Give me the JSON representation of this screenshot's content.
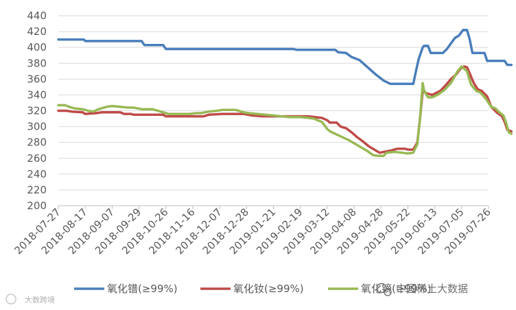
{
  "chart_data": {
    "type": "line",
    "title": "",
    "xlabel": "",
    "ylabel": "",
    "ylim": [
      200,
      440
    ],
    "yticks": [
      200,
      220,
      240,
      260,
      280,
      300,
      320,
      340,
      360,
      380,
      400,
      420,
      440
    ],
    "x_tick_labels": [
      "2018-07-27",
      "2018-08-17",
      "2018-09-07",
      "2018-09-29",
      "2018-10-26",
      "2018-11-16",
      "2018-12-07",
      "2018-12-28",
      "2019-01-21",
      "2019-02-19",
      "2019-03-12",
      "2019-04-08",
      "2019-04-28",
      "2019-05-22",
      "2019-06-13",
      "2019-07-05",
      "2019-07-26"
    ],
    "grid": "horizontal",
    "legend_position": "bottom",
    "series": [
      {
        "name": "氧化镨(≥99%)",
        "color": "#4a7ebb",
        "points": [
          [
            0,
            410
          ],
          [
            0.95,
            410
          ],
          [
            1.0,
            408
          ],
          [
            3.1,
            408
          ],
          [
            3.2,
            403
          ],
          [
            3.9,
            403
          ],
          [
            4.0,
            398
          ],
          [
            8.75,
            398
          ],
          [
            8.85,
            397
          ],
          [
            10.3,
            397
          ],
          [
            10.4,
            394
          ],
          [
            10.7,
            393
          ],
          [
            10.9,
            388
          ],
          [
            11.2,
            384
          ],
          [
            11.5,
            375
          ],
          [
            11.8,
            366
          ],
          [
            12.1,
            358
          ],
          [
            12.35,
            354
          ],
          [
            13.2,
            354
          ],
          [
            13.3,
            370
          ],
          [
            13.4,
            385
          ],
          [
            13.55,
            400
          ],
          [
            13.6,
            402
          ],
          [
            13.75,
            402
          ],
          [
            13.85,
            393
          ],
          [
            14.3,
            393
          ],
          [
            14.45,
            398
          ],
          [
            14.6,
            405
          ],
          [
            14.75,
            412
          ],
          [
            14.9,
            415
          ],
          [
            15.05,
            422
          ],
          [
            15.2,
            422
          ],
          [
            15.3,
            410
          ],
          [
            15.4,
            393
          ],
          [
            15.85,
            393
          ],
          [
            15.95,
            383
          ],
          [
            16.6,
            383
          ],
          [
            16.7,
            378
          ],
          [
            16.85,
            378
          ]
        ]
      },
      {
        "name": "氧化钕(≥99%)",
        "color": "#be4b48",
        "points": [
          [
            0,
            320
          ],
          [
            0.3,
            320
          ],
          [
            0.5,
            319
          ],
          [
            0.9,
            318
          ],
          [
            1.0,
            316
          ],
          [
            1.4,
            317
          ],
          [
            1.6,
            318
          ],
          [
            2.3,
            318
          ],
          [
            2.45,
            316
          ],
          [
            2.7,
            316
          ],
          [
            2.8,
            315
          ],
          [
            3.9,
            315
          ],
          [
            4.0,
            313
          ],
          [
            5.4,
            313
          ],
          [
            5.6,
            315
          ],
          [
            6.1,
            316
          ],
          [
            6.9,
            316
          ],
          [
            7.2,
            314
          ],
          [
            7.6,
            313
          ],
          [
            8.6,
            313
          ],
          [
            9.3,
            313
          ],
          [
            9.8,
            311
          ],
          [
            10.0,
            308
          ],
          [
            10.1,
            305
          ],
          [
            10.35,
            305
          ],
          [
            10.5,
            300
          ],
          [
            10.7,
            298
          ],
          [
            10.9,
            293
          ],
          [
            11.1,
            287
          ],
          [
            11.3,
            282
          ],
          [
            11.55,
            275
          ],
          [
            11.8,
            270
          ],
          [
            11.95,
            267
          ],
          [
            12.1,
            268
          ],
          [
            12.4,
            270
          ],
          [
            12.6,
            272
          ],
          [
            12.9,
            272
          ],
          [
            13.0,
            271
          ],
          [
            13.2,
            271
          ],
          [
            13.35,
            280
          ],
          [
            13.45,
            310
          ],
          [
            13.55,
            345
          ],
          [
            13.7,
            342
          ],
          [
            13.9,
            340
          ],
          [
            14.2,
            345
          ],
          [
            14.4,
            352
          ],
          [
            14.6,
            360
          ],
          [
            14.8,
            366
          ],
          [
            14.95,
            373
          ],
          [
            15.1,
            376
          ],
          [
            15.2,
            375
          ],
          [
            15.3,
            367
          ],
          [
            15.45,
            355
          ],
          [
            15.6,
            347
          ],
          [
            15.75,
            345
          ],
          [
            15.95,
            338
          ],
          [
            16.1,
            325
          ],
          [
            16.3,
            318
          ],
          [
            16.5,
            313
          ],
          [
            16.6,
            306
          ],
          [
            16.7,
            296
          ],
          [
            16.85,
            294
          ]
        ]
      },
      {
        "name": "氧化镝(≥99%)",
        "color": "#98b954",
        "points": [
          [
            0,
            327
          ],
          [
            0.25,
            327
          ],
          [
            0.4,
            325
          ],
          [
            0.6,
            323
          ],
          [
            0.9,
            322
          ],
          [
            1.1,
            320
          ],
          [
            1.3,
            319
          ],
          [
            1.5,
            322
          ],
          [
            1.8,
            325
          ],
          [
            2.0,
            326
          ],
          [
            2.3,
            325
          ],
          [
            2.6,
            324
          ],
          [
            2.8,
            324
          ],
          [
            3.1,
            322
          ],
          [
            3.5,
            322
          ],
          [
            3.7,
            320
          ],
          [
            3.9,
            318
          ],
          [
            4.1,
            316
          ],
          [
            4.4,
            316
          ],
          [
            4.9,
            316
          ],
          [
            5.1,
            317
          ],
          [
            5.3,
            317
          ],
          [
            5.6,
            319
          ],
          [
            5.9,
            320
          ],
          [
            6.1,
            321
          ],
          [
            6.6,
            321
          ],
          [
            6.9,
            318
          ],
          [
            7.1,
            317
          ],
          [
            7.4,
            316
          ],
          [
            7.7,
            315
          ],
          [
            8.0,
            314
          ],
          [
            8.3,
            313
          ],
          [
            8.6,
            312
          ],
          [
            9.0,
            312
          ],
          [
            9.3,
            311
          ],
          [
            9.5,
            310
          ],
          [
            9.8,
            306
          ],
          [
            10.0,
            297
          ],
          [
            10.1,
            294
          ],
          [
            10.35,
            290
          ],
          [
            10.6,
            286
          ],
          [
            10.8,
            283
          ],
          [
            10.95,
            280
          ],
          [
            11.1,
            277
          ],
          [
            11.3,
            273
          ],
          [
            11.5,
            269
          ],
          [
            11.7,
            264
          ],
          [
            11.9,
            263
          ],
          [
            12.1,
            263
          ],
          [
            12.2,
            267
          ],
          [
            12.5,
            268
          ],
          [
            12.8,
            267
          ],
          [
            13.0,
            266
          ],
          [
            13.2,
            267
          ],
          [
            13.35,
            278
          ],
          [
            13.45,
            310
          ],
          [
            13.55,
            355
          ],
          [
            13.6,
            346
          ],
          [
            13.75,
            337
          ],
          [
            13.9,
            337
          ],
          [
            14.1,
            340
          ],
          [
            14.35,
            346
          ],
          [
            14.6,
            355
          ],
          [
            14.85,
            370
          ],
          [
            15.0,
            376
          ],
          [
            15.2,
            370
          ],
          [
            15.35,
            353
          ],
          [
            15.55,
            345
          ],
          [
            15.7,
            343
          ],
          [
            15.9,
            335
          ],
          [
            16.1,
            325
          ],
          [
            16.25,
            323
          ],
          [
            16.4,
            318
          ],
          [
            16.55,
            314
          ],
          [
            16.65,
            305
          ],
          [
            16.75,
            293
          ],
          [
            16.85,
            291
          ]
        ]
      }
    ]
  },
  "watermarks": {
    "wechat_source": "中国稀土大数据",
    "corner_logo": "大数跨境"
  }
}
